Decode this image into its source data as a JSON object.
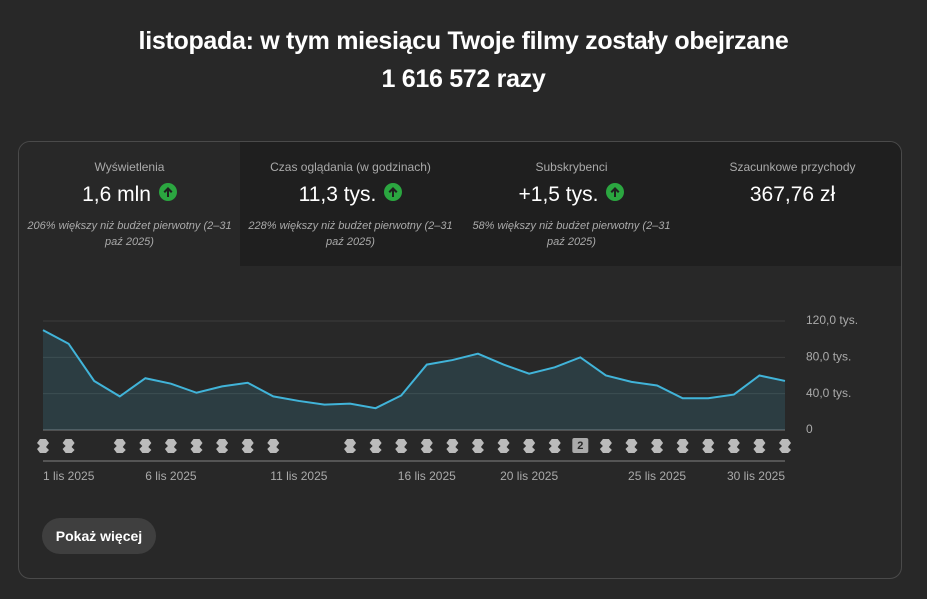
{
  "header": {
    "line1": "listopada: w tym miesiącu Twoje filmy zostały obejrzane",
    "line2": "1 616 572 razy"
  },
  "tabs": [
    {
      "label": "Wyświetlenia",
      "value": "1,6 mln",
      "note": "206% większy niż budżet pierwotny (2–31 paź 2025)"
    },
    {
      "label": "Czas oglądania (w godzinach)",
      "value": "11,3 tys.",
      "note": "228% większy niż budżet pierwotny (2–31 paź 2025)"
    },
    {
      "label": "Subskrybenci",
      "value": "+1,5 tys.",
      "note": "58% większy niż budżet pierwotny (2–31 paź 2025)"
    },
    {
      "label": "Szacunkowe przychody",
      "value": "367,76 zł"
    }
  ],
  "chart_data": {
    "type": "line",
    "x": [
      "1 lis 2025",
      null,
      null,
      null,
      null,
      "6 lis 2025",
      null,
      null,
      null,
      null,
      "11 lis 2025",
      null,
      null,
      null,
      null,
      "16 lis 2025",
      null,
      null,
      null,
      "20 lis 2025",
      null,
      null,
      null,
      null,
      "25 lis 2025",
      null,
      null,
      null,
      null,
      "30 lis 2025"
    ],
    "series": [
      {
        "color": "#41b4d9",
        "values": [
          110,
          95,
          54,
          37,
          57,
          51,
          41,
          48,
          52,
          37,
          32,
          28,
          29,
          24,
          38,
          72,
          77,
          84,
          72,
          62,
          69,
          80,
          60,
          53,
          49,
          35,
          35,
          39,
          60,
          54
        ]
      }
    ],
    "ylim": [
      0,
      120
    ],
    "yticks": [
      0,
      {
        "value": 40,
        "label": "40,0 tys."
      },
      {
        "value": 80,
        "label": "80,0 tys."
      },
      {
        "value": 120,
        "label": "120,0 tys."
      }
    ],
    "grid": true,
    "badge": "2"
  },
  "button": "Pokaż więcej"
}
